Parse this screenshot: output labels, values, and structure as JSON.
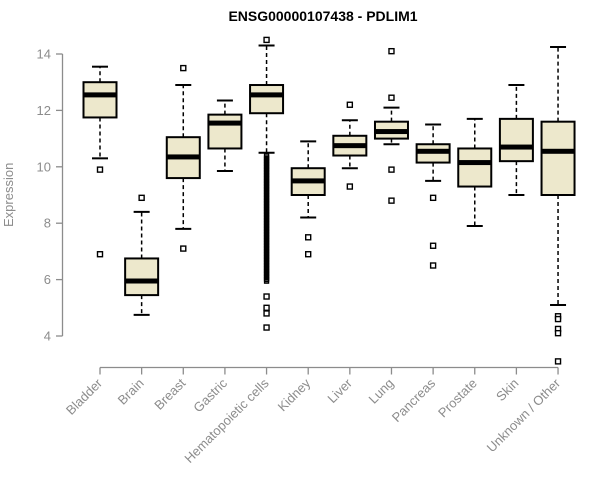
{
  "title": "ENSG00000107438 - PDLIM1",
  "chart_data": {
    "type": "boxplot",
    "title": "ENSG00000107438 - PDLIM1",
    "xlabel": "",
    "ylabel": "Expression",
    "y_ticks": [
      4,
      6,
      8,
      10,
      12,
      14
    ],
    "ylim": [
      3.0,
      14.7
    ],
    "grid": false,
    "x_tick_label_rotation_deg": 45,
    "legend": "none",
    "colors": {
      "box_fill": "#ede8cc",
      "box_stroke": "#000000",
      "median": "#000000",
      "whisker": "#000000",
      "axis": "#8c8c8c",
      "tick_text": "#8c8c8c",
      "title_text": "#000000",
      "background": "#ffffff"
    },
    "categories": [
      "Bladder",
      "Brain",
      "Breast",
      "Gastric",
      "Hematopoietic cells",
      "Kidney",
      "Liver",
      "Lung",
      "Pancreas",
      "Prostate",
      "Skin",
      "Unknown / Other"
    ],
    "series": [
      {
        "category": "Bladder",
        "whisker_low": 10.3,
        "q1": 11.75,
        "median": 12.55,
        "q3": 13.0,
        "whisker_high": 13.55,
        "outliers": [
          9.9,
          6.9
        ]
      },
      {
        "category": "Brain",
        "whisker_low": 4.75,
        "q1": 5.45,
        "median": 5.95,
        "q3": 6.75,
        "whisker_high": 8.4,
        "outliers": [
          8.9
        ]
      },
      {
        "category": "Breast",
        "whisker_low": 7.8,
        "q1": 9.6,
        "median": 10.35,
        "q3": 11.05,
        "whisker_high": 12.9,
        "outliers": [
          13.5,
          7.1
        ]
      },
      {
        "category": "Gastric",
        "whisker_low": 9.85,
        "q1": 10.65,
        "median": 11.55,
        "q3": 11.85,
        "whisker_high": 12.35,
        "outliers": []
      },
      {
        "category": "Hematopoietic cells",
        "whisker_low": 10.5,
        "q1": 11.9,
        "median": 12.55,
        "q3": 12.9,
        "whisker_high": 14.3,
        "outliers": [
          14.5,
          5.4,
          5.0,
          4.8,
          4.3
        ],
        "dense_outlier_column": {
          "from": 10.4,
          "to": 5.9
        }
      },
      {
        "category": "Kidney",
        "whisker_low": 8.2,
        "q1": 9.0,
        "median": 9.5,
        "q3": 9.95,
        "whisker_high": 10.9,
        "outliers": [
          7.5,
          6.9
        ]
      },
      {
        "category": "Liver",
        "whisker_low": 9.95,
        "q1": 10.4,
        "median": 10.75,
        "q3": 11.1,
        "whisker_high": 11.65,
        "outliers": [
          12.2,
          9.3
        ]
      },
      {
        "category": "Lung",
        "whisker_low": 10.8,
        "q1": 11.0,
        "median": 11.25,
        "q3": 11.6,
        "whisker_high": 12.1,
        "outliers": [
          14.1,
          12.45,
          9.9,
          8.8
        ]
      },
      {
        "category": "Pancreas",
        "whisker_low": 9.5,
        "q1": 10.15,
        "median": 10.55,
        "q3": 10.8,
        "whisker_high": 11.5,
        "outliers": [
          8.9,
          7.2,
          6.5
        ]
      },
      {
        "category": "Prostate",
        "whisker_low": 7.9,
        "q1": 9.3,
        "median": 10.15,
        "q3": 10.65,
        "whisker_high": 11.7,
        "outliers": []
      },
      {
        "category": "Skin",
        "whisker_low": 9.0,
        "q1": 10.2,
        "median": 10.7,
        "q3": 11.7,
        "whisker_high": 12.9,
        "outliers": []
      },
      {
        "category": "Unknown / Other",
        "whisker_low": 5.1,
        "q1": 9.0,
        "median": 10.55,
        "q3": 11.6,
        "whisker_high": 14.25,
        "outliers": [
          4.7,
          4.6,
          4.25,
          4.1,
          3.1
        ]
      }
    ]
  }
}
